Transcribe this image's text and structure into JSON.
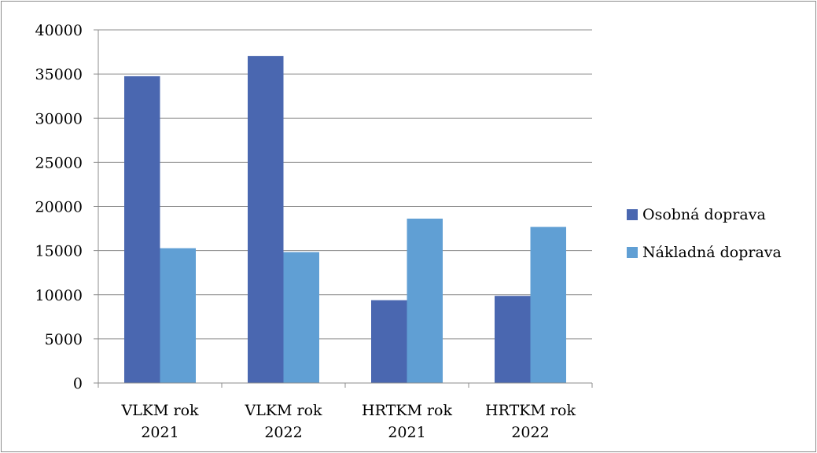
{
  "chart_data": {
    "type": "bar",
    "categories": [
      [
        "VLKM rok",
        "2021"
      ],
      [
        "VLKM rok",
        "2022"
      ],
      [
        "HRTKM rok",
        "2021"
      ],
      [
        "HRTKM rok",
        "2022"
      ]
    ],
    "series": [
      {
        "name": "Osobná doprava",
        "color": "#4a67b0",
        "values": [
          34750,
          37050,
          9380,
          9870
        ]
      },
      {
        "name": "Nákladná doprava",
        "color": "#609fd4",
        "values": [
          15270,
          14830,
          18620,
          17680
        ]
      }
    ],
    "ylim": [
      0,
      40000
    ],
    "yticks": [
      0,
      5000,
      10000,
      15000,
      20000,
      25000,
      30000,
      35000,
      40000
    ],
    "grid": true,
    "legend_position": "right",
    "title": "",
    "xlabel": "",
    "ylabel": ""
  }
}
